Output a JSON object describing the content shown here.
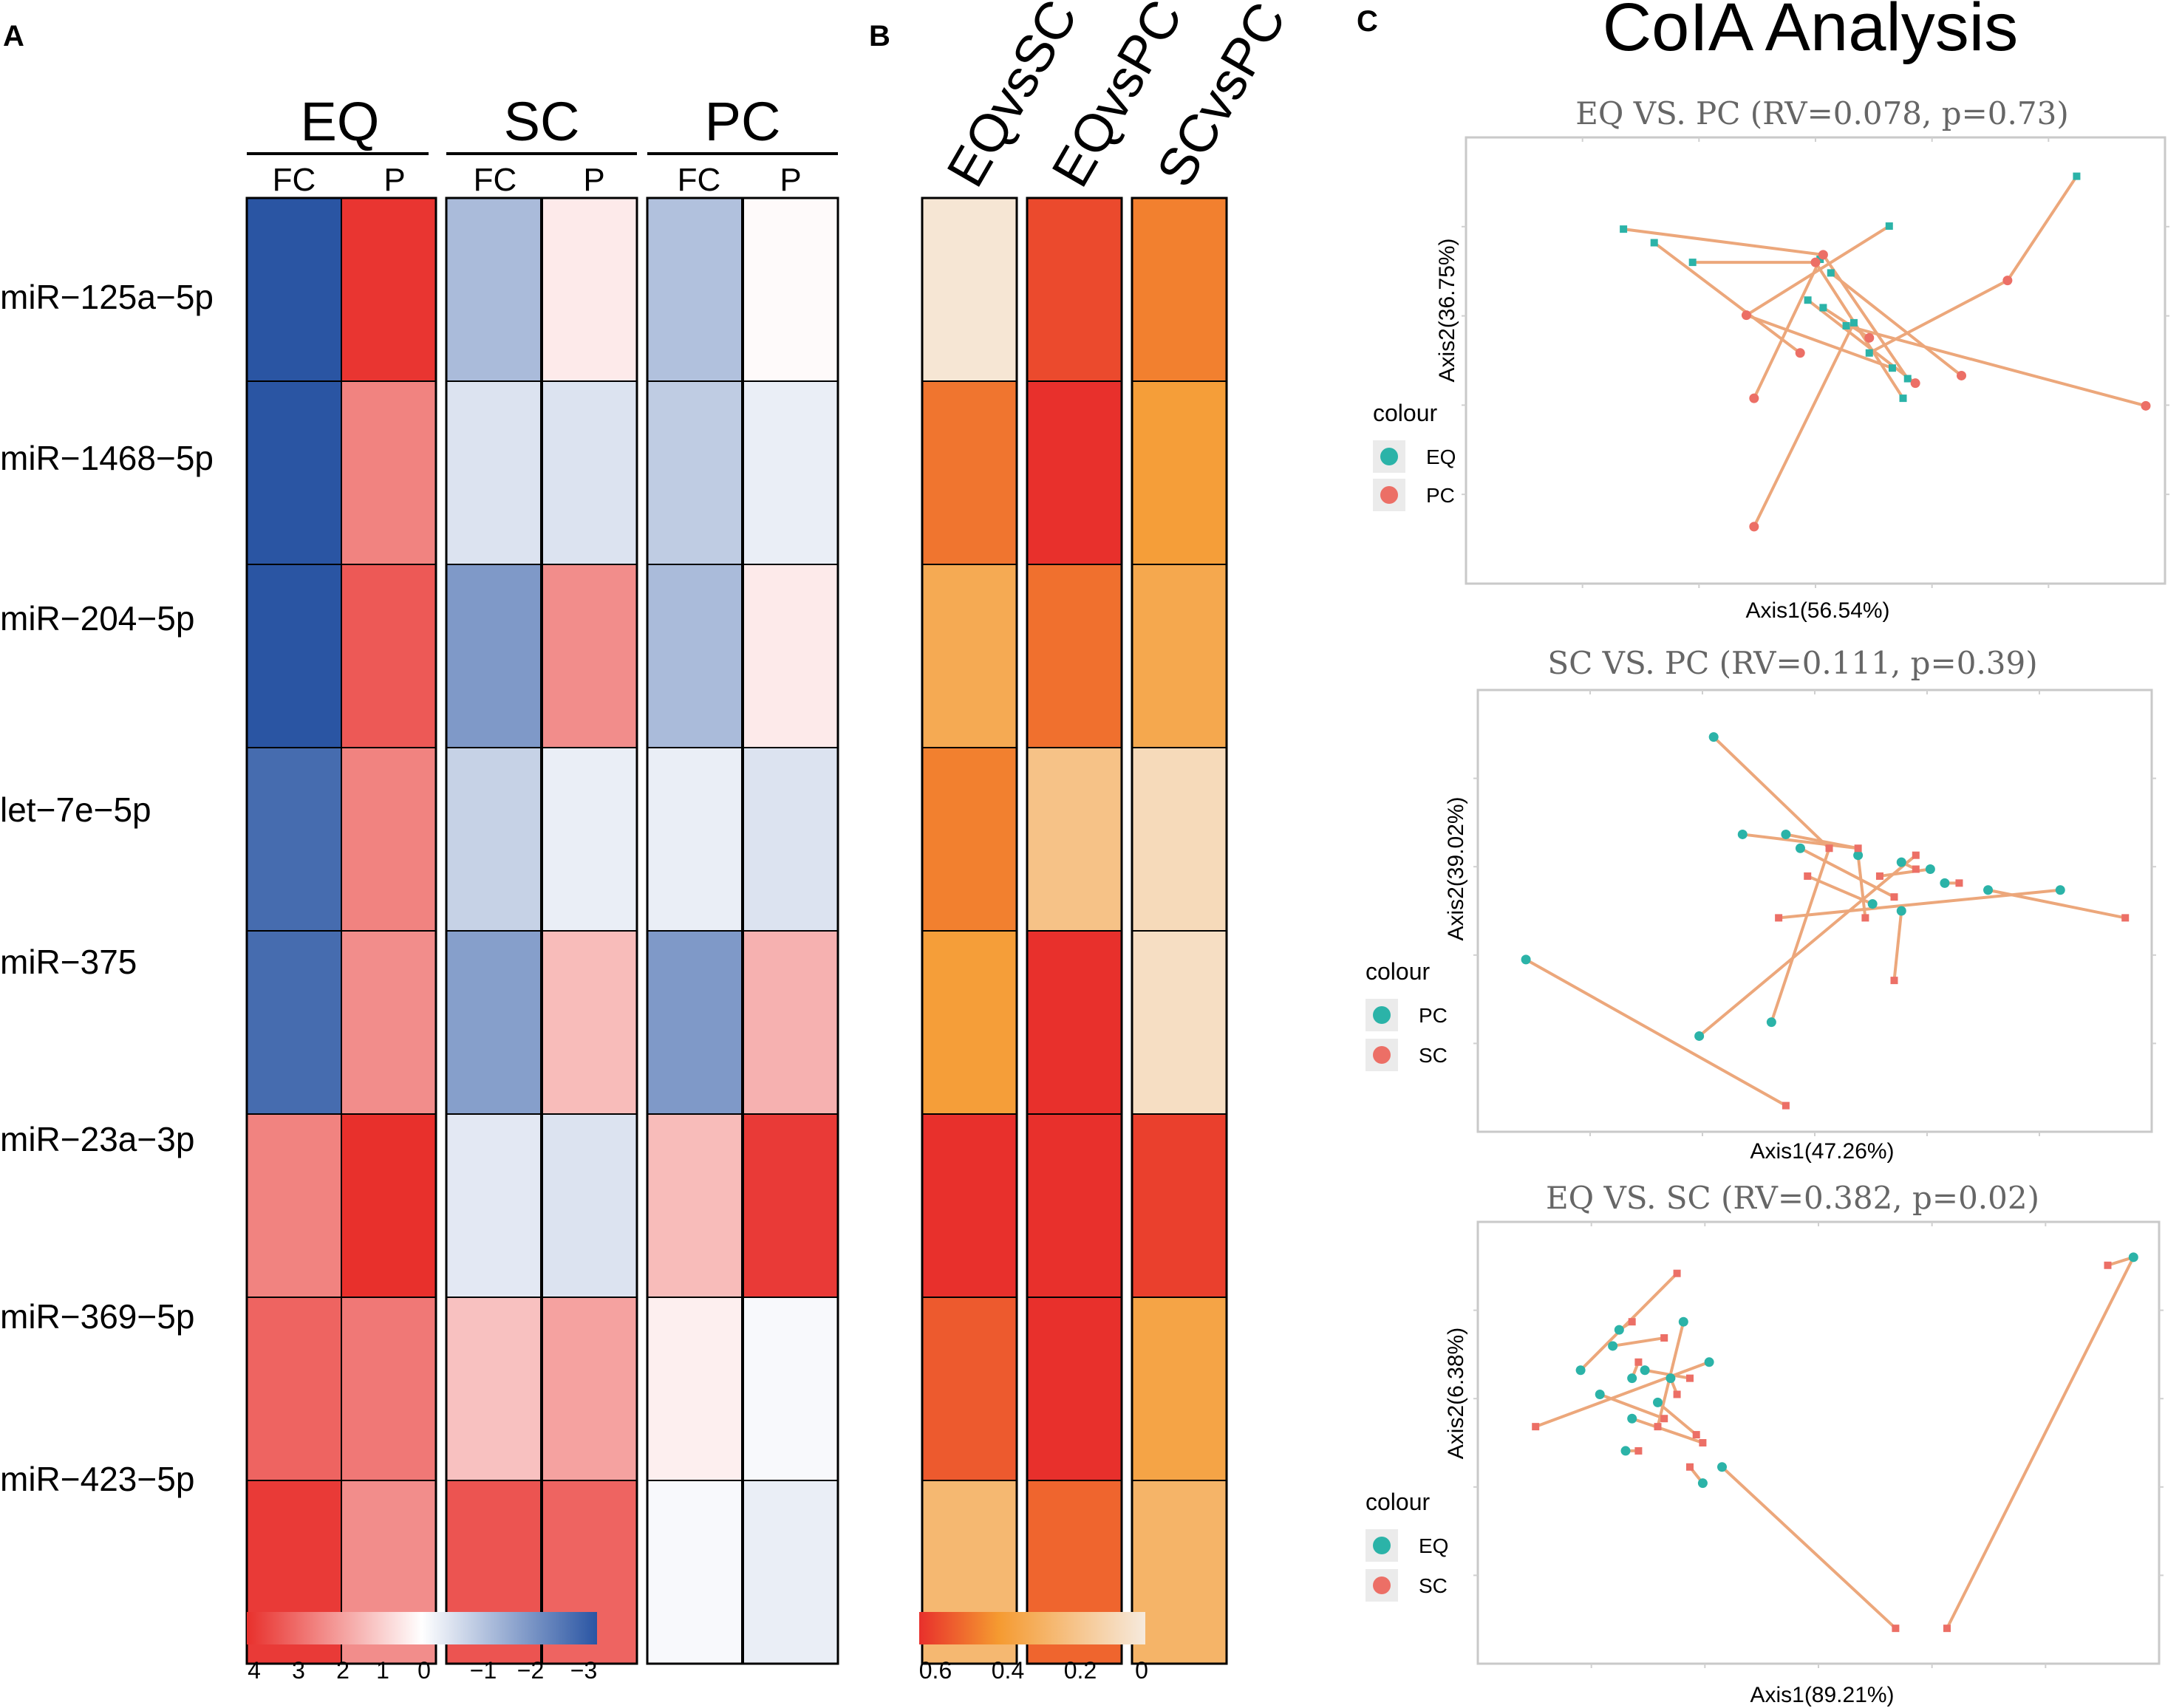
{
  "panel_a": {
    "label": "A",
    "groups": [
      "EQ",
      "SC",
      "PC"
    ],
    "subcols": [
      "FC",
      "P"
    ],
    "rows": [
      "miR−125a−5p",
      "miR−1468−5p",
      "miR−204−5p",
      "let−7e−5p",
      "miR−375",
      "miR−23a−3p",
      "miR−369−5p",
      "miR−423−5p"
    ],
    "legend_ticks": [
      "4",
      "3",
      "2",
      "1",
      "0",
      "−1",
      "−2",
      "−3"
    ]
  },
  "panel_b": {
    "label": "B",
    "columns": [
      "EQvsSC",
      "EQvsPC",
      "SCvsPC"
    ],
    "legend_ticks": [
      "0.6",
      "0.4",
      "0.2",
      "0"
    ]
  },
  "panel_c": {
    "label": "C",
    "title": "CoIA Analysis",
    "legend_title": "colour"
  },
  "colors": {
    "heat_max": "#e8302c",
    "heat_mid": "#ffffff",
    "heat_min": "#2a55a3",
    "sim_max": "#e8302c",
    "sim_mid": "#f59a30",
    "sim_zero": "#f6eadd",
    "teal": "#2bb3a8",
    "salmon": "#ec6f66",
    "link": "#eca77b"
  },
  "chart_data": [
    {
      "type": "heatmap",
      "panel": "A",
      "title": "",
      "columns": [
        "EQ FC",
        "EQ P",
        "SC FC",
        "SC P",
        "PC FC",
        "PC P"
      ],
      "rows": [
        "miR-125a-5p",
        "miR-1468-5p",
        "miR-204-5p",
        "let-7e-5p",
        "miR-375",
        "miR-23a-3p",
        "miR-369-5p",
        "miR-423-5p"
      ],
      "values": [
        [
          -3.0,
          3.9,
          -1.2,
          0.4,
          -1.1,
          0.1
        ],
        [
          -3.0,
          2.4,
          -0.5,
          -0.5,
          -0.9,
          -0.3
        ],
        [
          -3.0,
          3.2,
          -1.8,
          2.2,
          -1.2,
          0.4
        ],
        [
          -2.6,
          2.4,
          -0.8,
          -0.3,
          -0.3,
          -0.5
        ],
        [
          -2.6,
          2.2,
          -1.7,
          1.3,
          -1.8,
          1.5
        ],
        [
          2.4,
          4.0,
          -0.4,
          -0.5,
          1.3,
          3.8
        ],
        [
          3.0,
          2.6,
          1.2,
          1.8,
          0.3,
          -0.1
        ],
        [
          3.8,
          2.2,
          3.3,
          3.0,
          -0.1,
          -0.3
        ]
      ],
      "range": [
        -3,
        4
      ],
      "colorbar_ticks": [
        4,
        3,
        2,
        1,
        0,
        -1,
        -2,
        -3
      ]
    },
    {
      "type": "heatmap",
      "panel": "B",
      "title": "",
      "columns": [
        "EQvsSC",
        "EQvsPC",
        "SCvsPC"
      ],
      "rows": [
        "miR-125a-5p",
        "miR-1468-5p",
        "miR-204-5p",
        "let-7e-5p",
        "miR-375",
        "miR-23a-3p",
        "miR-369-5p",
        "miR-423-5p"
      ],
      "values": [
        [
          0.02,
          0.55,
          0.45
        ],
        [
          0.47,
          0.63,
          0.38
        ],
        [
          0.32,
          0.48,
          0.33
        ],
        [
          0.45,
          0.2,
          0.08
        ],
        [
          0.38,
          0.66,
          0.06
        ],
        [
          0.66,
          0.66,
          0.57
        ],
        [
          0.52,
          0.66,
          0.35
        ],
        [
          0.25,
          0.5,
          0.27
        ]
      ],
      "range": [
        0,
        0.6
      ],
      "colorbar_ticks": [
        0.6,
        0.4,
        0.2,
        0
      ]
    },
    {
      "type": "scatter",
      "panel": "C1",
      "title": "EQ VS. PC (RV=0.078, p=0.73)",
      "xlabel": "Axis1(56.54%)",
      "ylabel": "Axis2(36.75%)",
      "xlim": [
        -2.3,
        2.0
      ],
      "ylim": [
        -1.7,
        1.0
      ],
      "legend_title": "colour",
      "series": [
        {
          "name": "EQ",
          "color": "#2bb3a8",
          "shape": "square",
          "points": [
            [
              1.55,
              0.87
            ],
            [
              0.33,
              0.54
            ],
            [
              -1.4,
              0.52
            ],
            [
              -0.95,
              0.3
            ],
            [
              -1.2,
              0.43
            ],
            [
              -0.12,
              0.32
            ],
            [
              -0.05,
              0.23
            ],
            [
              -0.2,
              0.05
            ],
            [
              -0.1,
              0.0
            ],
            [
              0.05,
              -0.12
            ],
            [
              0.1,
              -0.1
            ],
            [
              0.2,
              -0.3
            ],
            [
              0.35,
              -0.4
            ],
            [
              0.45,
              -0.47
            ],
            [
              0.42,
              -0.6
            ]
          ]
        },
        {
          "name": "PC",
          "color": "#ec6f66",
          "shape": "circle",
          "points": [
            [
              1.1,
              0.18
            ],
            [
              -0.6,
              -0.05
            ],
            [
              -0.1,
              0.35
            ],
            [
              -0.15,
              0.3
            ],
            [
              -0.25,
              -0.3
            ],
            [
              -0.55,
              -0.6
            ],
            [
              0.8,
              -0.45
            ],
            [
              0.5,
              -0.5
            ],
            [
              0.2,
              -0.2
            ],
            [
              2.0,
              -0.65
            ],
            [
              -0.55,
              -1.45
            ]
          ]
        }
      ]
    },
    {
      "type": "scatter",
      "panel": "C2",
      "title": "SC VS. PC (RV=0.111, p=0.39)",
      "xlabel": "Axis1(47.26%)",
      "ylabel": "Axis2(39.02%)",
      "xlim": [
        -2.2,
        2.2
      ],
      "ylim": [
        -1.6,
        1.3
      ],
      "legend_title": "colour",
      "series": [
        {
          "name": "PC",
          "color": "#2bb3a8",
          "shape": "circle",
          "points": [
            [
              -0.7,
              1.1
            ],
            [
              -0.2,
              0.4
            ],
            [
              -0.1,
              0.3
            ],
            [
              0.3,
              0.25
            ],
            [
              0.6,
              0.2
            ],
            [
              0.8,
              0.15
            ],
            [
              0.9,
              0.05
            ],
            [
              1.2,
              0.0
            ],
            [
              1.7,
              0.0
            ],
            [
              0.4,
              -0.1
            ],
            [
              0.6,
              -0.15
            ],
            [
              -2.0,
              -0.5
            ],
            [
              -0.8,
              -1.05
            ],
            [
              -0.3,
              -0.95
            ],
            [
              -0.5,
              0.4
            ]
          ]
        },
        {
          "name": "SC",
          "color": "#ec6f66",
          "shape": "square",
          "points": [
            [
              0.1,
              0.3
            ],
            [
              0.3,
              0.3
            ],
            [
              0.55,
              -0.05
            ],
            [
              0.35,
              -0.2
            ],
            [
              0.7,
              0.15
            ],
            [
              0.45,
              0.1
            ],
            [
              1.0,
              0.05
            ],
            [
              2.15,
              -0.2
            ],
            [
              -0.25,
              -0.2
            ],
            [
              -0.05,
              0.1
            ],
            [
              0.55,
              -0.65
            ],
            [
              -0.2,
              -1.55
            ],
            [
              0.7,
              0.25
            ]
          ]
        }
      ]
    },
    {
      "type": "scatter",
      "panel": "C3",
      "title": "EQ VS. SC (RV=0.382, p=0.02)",
      "xlabel": "Axis1(89.21%)",
      "ylabel": "Axis2(6.38%)",
      "xlim": [
        -2.0,
        3.0
      ],
      "ylim": [
        -1.6,
        0.9
      ],
      "legend_title": "colour",
      "series": [
        {
          "name": "EQ",
          "color": "#2bb3a8",
          "shape": "circle",
          "points": [
            [
              2.95,
              0.8
            ],
            [
              -1.05,
              0.35
            ],
            [
              -1.1,
              0.25
            ],
            [
              -0.95,
              0.05
            ],
            [
              -0.85,
              0.1
            ],
            [
              -0.65,
              0.05
            ],
            [
              -0.55,
              0.4
            ],
            [
              -0.35,
              0.15
            ],
            [
              -1.35,
              0.1
            ],
            [
              -0.95,
              -0.2
            ],
            [
              -0.75,
              -0.1
            ],
            [
              -1.0,
              -0.4
            ],
            [
              -1.2,
              -0.05
            ],
            [
              -0.4,
              -0.6
            ],
            [
              -0.25,
              -0.5
            ]
          ]
        },
        {
          "name": "SC",
          "color": "#ec6f66",
          "shape": "square",
          "points": [
            [
              2.75,
              0.75
            ],
            [
              -0.95,
              0.4
            ],
            [
              -0.7,
              0.3
            ],
            [
              -0.9,
              0.15
            ],
            [
              -0.5,
              0.05
            ],
            [
              -0.6,
              -0.05
            ],
            [
              -0.75,
              -0.25
            ],
            [
              -1.7,
              -0.25
            ],
            [
              -0.6,
              0.7
            ],
            [
              -0.4,
              -0.35
            ],
            [
              -0.45,
              -0.3
            ],
            [
              -0.9,
              -0.4
            ],
            [
              -0.7,
              -0.2
            ],
            [
              -0.5,
              -0.5
            ],
            [
              1.1,
              -1.5
            ],
            [
              1.5,
              -1.5
            ]
          ]
        }
      ]
    }
  ]
}
